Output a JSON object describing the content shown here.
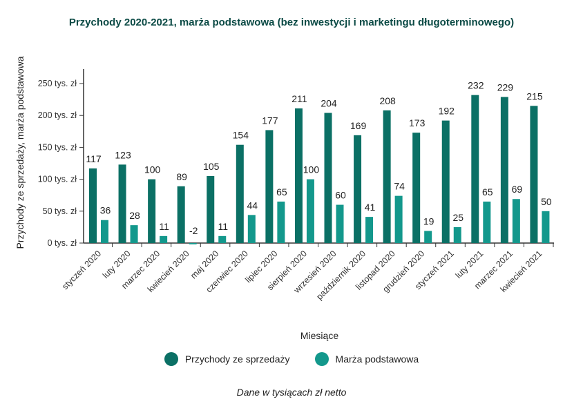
{
  "chart_data": {
    "type": "bar",
    "title": "Przychody 2020-2021, marża podstawowa (bez inwestycji i marketingu długoterminowego)",
    "xlabel": "Miesiące",
    "ylabel": "Przychody ze sprzedaży, marża podstawowa",
    "ylim": [
      0,
      270
    ],
    "yticks": [
      {
        "value": 0,
        "label": "0 tys. zł"
      },
      {
        "value": 50,
        "label": "50 tys. zł"
      },
      {
        "value": 100,
        "label": "100 tys. zł"
      },
      {
        "value": 150,
        "label": "150 tys. zł"
      },
      {
        "value": 200,
        "label": "200 tys. zł"
      },
      {
        "value": 250,
        "label": "250 tys. zł"
      }
    ],
    "grid": false,
    "legend_position": "bottom",
    "categories": [
      "styczeń 2020",
      "luty 2020",
      "marzec 2020",
      "kwiecień 2020",
      "maj 2020",
      "czerwiec 2020",
      "lipiec 2020",
      "sierpień 2020",
      "wrzesień 2020",
      "październik 2020",
      "listopad 2020",
      "grudzień 2020",
      "styczeń 2021",
      "luty 2021",
      "marzec 2021",
      "kwiecień 2021"
    ],
    "series": [
      {
        "name": "Przychody ze sprzedaży",
        "color": "#0b7065",
        "values": [
          117,
          123,
          100,
          89,
          105,
          154,
          177,
          211,
          204,
          169,
          208,
          173,
          192,
          232,
          229,
          215
        ]
      },
      {
        "name": "Marża podstawowa",
        "color": "#13988c",
        "values": [
          36,
          28,
          11,
          -2,
          11,
          44,
          65,
          100,
          60,
          41,
          74,
          19,
          25,
          65,
          69,
          50
        ]
      }
    ],
    "footnote": "Dane w tysiącach zł netto"
  }
}
